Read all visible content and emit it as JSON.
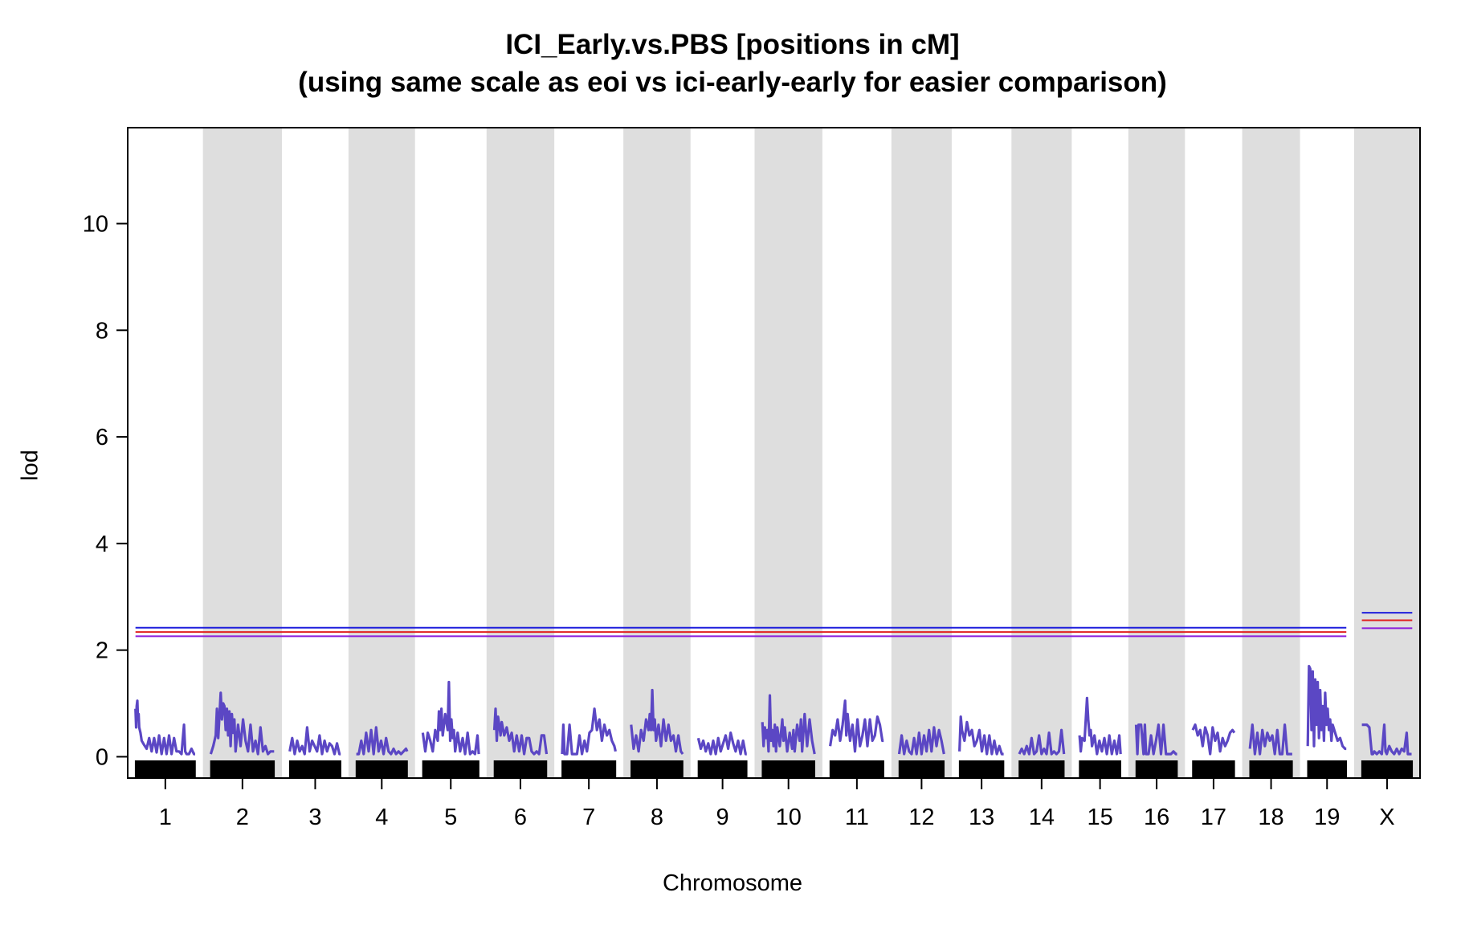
{
  "chart_data": {
    "type": "line",
    "title": "ICI_Early.vs.PBS [positions in cM]",
    "subtitle": "(using same scale as eoi vs ici-early-early for easier comparison)",
    "xlabel": "Chromosome",
    "ylabel": "lod",
    "ylim": [
      -0.4,
      11.8
    ],
    "yticks": [
      0,
      2,
      4,
      6,
      8,
      10
    ],
    "alternating_band_color": "#dedede",
    "line_color": "#5b47c4",
    "chromosomes": [
      {
        "name": "1",
        "length_cM": 96
      },
      {
        "name": "2",
        "length_cM": 102
      },
      {
        "name": "3",
        "length_cM": 82
      },
      {
        "name": "4",
        "length_cM": 82
      },
      {
        "name": "5",
        "length_cM": 90
      },
      {
        "name": "6",
        "length_cM": 84
      },
      {
        "name": "7",
        "length_cM": 86
      },
      {
        "name": "8",
        "length_cM": 83
      },
      {
        "name": "9",
        "length_cM": 78
      },
      {
        "name": "10",
        "length_cM": 84
      },
      {
        "name": "11",
        "length_cM": 86
      },
      {
        "name": "12",
        "length_cM": 72
      },
      {
        "name": "13",
        "length_cM": 71
      },
      {
        "name": "14",
        "length_cM": 72
      },
      {
        "name": "15",
        "length_cM": 66
      },
      {
        "name": "16",
        "length_cM": 66
      },
      {
        "name": "17",
        "length_cM": 67
      },
      {
        "name": "18",
        "length_cM": 68
      },
      {
        "name": "19",
        "length_cM": 62
      },
      {
        "name": "X",
        "length_cM": 81
      }
    ],
    "series": [
      {
        "chr": "1",
        "x": [
          0,
          1,
          2,
          3,
          4,
          5,
          6,
          8,
          10,
          14,
          18,
          22,
          26,
          30,
          34,
          38,
          42,
          46,
          50,
          54,
          58,
          62,
          66,
          70,
          74,
          78,
          80,
          82,
          86,
          90,
          94,
          96
        ],
        "y": [
          0.9,
          0.55,
          0.95,
          1.05,
          0.7,
          0.8,
          0.55,
          0.45,
          0.3,
          0.22,
          0.15,
          0.35,
          0.1,
          0.35,
          0.08,
          0.4,
          0.05,
          0.35,
          0.05,
          0.4,
          0.05,
          0.35,
          0.1,
          0.1,
          0.05,
          0.6,
          0.1,
          0.05,
          0.05,
          0.15,
          0.05,
          0.05
        ]
      },
      {
        "chr": "2",
        "x": [
          0,
          4,
          8,
          10,
          12,
          16,
          18,
          20,
          22,
          24,
          26,
          28,
          30,
          32,
          34,
          36,
          38,
          40,
          44,
          48,
          52,
          56,
          60,
          64,
          68,
          72,
          76,
          80,
          84,
          88,
          92,
          96,
          102
        ],
        "y": [
          0.05,
          0.2,
          0.4,
          0.9,
          0.35,
          1.2,
          0.7,
          1.0,
          0.95,
          0.5,
          0.9,
          0.4,
          0.85,
          0.2,
          0.8,
          0.45,
          0.7,
          0.1,
          0.6,
          0.2,
          0.7,
          0.3,
          0.1,
          0.6,
          0.1,
          0.3,
          0.05,
          0.55,
          0.1,
          0.2,
          0.05,
          0.1,
          0.1
        ]
      },
      {
        "chr": "3",
        "x": [
          0,
          4,
          8,
          12,
          16,
          20,
          24,
          28,
          32,
          36,
          40,
          44,
          48,
          52,
          56,
          60,
          64,
          68,
          72,
          76,
          80,
          82
        ],
        "y": [
          0.1,
          0.35,
          0.05,
          0.3,
          0.1,
          0.2,
          0.05,
          0.55,
          0.1,
          0.3,
          0.2,
          0.1,
          0.4,
          0.05,
          0.3,
          0.1,
          0.25,
          0.2,
          0.05,
          0.25,
          0.05,
          0.05
        ]
      },
      {
        "chr": "4",
        "x": [
          0,
          4,
          8,
          12,
          16,
          20,
          24,
          28,
          32,
          36,
          40,
          44,
          48,
          52,
          56,
          60,
          64,
          68,
          72,
          76,
          80,
          82
        ],
        "y": [
          0.05,
          0.05,
          0.3,
          0.05,
          0.45,
          0.1,
          0.5,
          0.05,
          0.55,
          0.1,
          0.3,
          0.05,
          0.35,
          0.1,
          0.05,
          0.15,
          0.05,
          0.1,
          0.05,
          0.1,
          0.15,
          0.1
        ]
      },
      {
        "chr": "5",
        "x": [
          0,
          4,
          8,
          12,
          16,
          20,
          24,
          26,
          28,
          30,
          32,
          36,
          40,
          42,
          44,
          46,
          48,
          50,
          52,
          56,
          60,
          64,
          68,
          72,
          76,
          80,
          84,
          88,
          90
        ],
        "y": [
          0.45,
          0.1,
          0.45,
          0.3,
          0.1,
          0.5,
          0.3,
          0.85,
          0.5,
          0.9,
          0.4,
          0.8,
          0.5,
          1.4,
          0.3,
          0.7,
          0.35,
          0.5,
          0.1,
          0.45,
          0.1,
          0.35,
          0.05,
          0.45,
          0.05,
          0.1,
          0.05,
          0.4,
          0.05
        ]
      },
      {
        "chr": "6",
        "x": [
          0,
          2,
          4,
          6,
          8,
          10,
          12,
          16,
          20,
          24,
          28,
          32,
          36,
          40,
          44,
          48,
          52,
          56,
          60,
          64,
          68,
          72,
          76,
          80,
          84
        ],
        "y": [
          0.5,
          0.9,
          0.3,
          0.75,
          0.6,
          0.4,
          0.65,
          0.4,
          0.55,
          0.3,
          0.45,
          0.1,
          0.4,
          0.1,
          0.4,
          0.05,
          0.35,
          0.35,
          0.1,
          0.05,
          0.1,
          0.05,
          0.4,
          0.4,
          0.05
        ]
      },
      {
        "chr": "7",
        "x": [
          0,
          2,
          4,
          8,
          12,
          16,
          20,
          24,
          28,
          32,
          36,
          40,
          44,
          48,
          52,
          56,
          60,
          64,
          68,
          72,
          76,
          80,
          84,
          86
        ],
        "y": [
          0.05,
          0.6,
          0.05,
          0.05,
          0.6,
          0.05,
          0.05,
          0.05,
          0.4,
          0.05,
          0.3,
          0.1,
          0.45,
          0.5,
          0.9,
          0.5,
          0.7,
          0.3,
          0.6,
          0.4,
          0.5,
          0.3,
          0.2,
          0.1
        ]
      },
      {
        "chr": "8",
        "x": [
          0,
          4,
          8,
          12,
          16,
          20,
          24,
          28,
          30,
          32,
          34,
          36,
          38,
          40,
          44,
          48,
          52,
          56,
          60,
          64,
          68,
          72,
          76,
          80,
          83
        ],
        "y": [
          0.6,
          0.15,
          0.4,
          0.1,
          0.5,
          0.3,
          0.7,
          0.5,
          0.8,
          0.5,
          1.25,
          0.5,
          0.7,
          0.3,
          0.6,
          0.2,
          0.7,
          0.3,
          0.6,
          0.3,
          0.4,
          0.1,
          0.4,
          0.1,
          0.05
        ]
      },
      {
        "chr": "9",
        "x": [
          0,
          4,
          8,
          12,
          16,
          20,
          24,
          28,
          32,
          36,
          40,
          44,
          48,
          52,
          56,
          60,
          64,
          68,
          72,
          76,
          78
        ],
        "y": [
          0.35,
          0.15,
          0.3,
          0.1,
          0.25,
          0.05,
          0.3,
          0.05,
          0.35,
          0.1,
          0.25,
          0.4,
          0.15,
          0.45,
          0.25,
          0.1,
          0.3,
          0.05,
          0.3,
          0.05,
          0.05
        ]
      },
      {
        "chr": "10",
        "x": [
          0,
          2,
          4,
          6,
          8,
          10,
          12,
          14,
          16,
          18,
          20,
          22,
          24,
          28,
          32,
          34,
          36,
          40,
          44,
          48,
          50,
          52,
          56,
          60,
          62,
          64,
          68,
          72,
          76,
          80,
          84
        ],
        "y": [
          0.65,
          0.2,
          0.55,
          0.35,
          0.5,
          0.1,
          1.15,
          0.3,
          0.5,
          0.2,
          0.6,
          0.1,
          0.55,
          0.2,
          0.7,
          0.3,
          0.55,
          0.1,
          0.45,
          0.15,
          0.5,
          0.1,
          0.6,
          0.3,
          0.7,
          0.1,
          0.8,
          0.2,
          0.7,
          0.3,
          0.05
        ]
      },
      {
        "chr": "11",
        "x": [
          0,
          4,
          8,
          12,
          16,
          20,
          24,
          26,
          28,
          32,
          36,
          40,
          44,
          48,
          52,
          56,
          60,
          64,
          68,
          72,
          76,
          80,
          84,
          86
        ],
        "y": [
          0.2,
          0.5,
          0.4,
          0.7,
          0.3,
          0.6,
          1.05,
          0.4,
          0.8,
          0.3,
          0.6,
          0.1,
          0.7,
          0.2,
          0.4,
          0.7,
          0.2,
          0.7,
          0.3,
          0.4,
          0.75,
          0.6,
          0.3,
          0.3
        ]
      },
      {
        "chr": "12",
        "x": [
          0,
          4,
          8,
          12,
          16,
          20,
          24,
          28,
          32,
          36,
          40,
          44,
          48,
          52,
          56,
          60,
          64,
          68,
          72
        ],
        "y": [
          0.05,
          0.4,
          0.05,
          0.3,
          0.1,
          0.05,
          0.35,
          0.05,
          0.45,
          0.05,
          0.4,
          0.1,
          0.5,
          0.1,
          0.55,
          0.2,
          0.5,
          0.3,
          0.05
        ]
      },
      {
        "chr": "13",
        "x": [
          0,
          2,
          4,
          8,
          12,
          16,
          20,
          24,
          28,
          32,
          36,
          40,
          44,
          48,
          52,
          56,
          60,
          64,
          68,
          71
        ],
        "y": [
          0.1,
          0.75,
          0.5,
          0.3,
          0.65,
          0.4,
          0.5,
          0.2,
          0.3,
          0.5,
          0.1,
          0.4,
          0.05,
          0.4,
          0.05,
          0.3,
          0.05,
          0.2,
          0.05,
          0.05
        ]
      },
      {
        "chr": "14",
        "x": [
          0,
          4,
          8,
          12,
          16,
          20,
          24,
          28,
          32,
          36,
          40,
          44,
          48,
          52,
          56,
          60,
          64,
          68,
          72
        ],
        "y": [
          0.05,
          0.15,
          0.05,
          0.2,
          0.05,
          0.35,
          0.05,
          0.1,
          0.4,
          0.05,
          0.15,
          0.05,
          0.45,
          0.05,
          0.1,
          0.05,
          0.1,
          0.5,
          0.05
        ]
      },
      {
        "chr": "15",
        "x": [
          0,
          2,
          4,
          8,
          12,
          14,
          16,
          18,
          20,
          24,
          28,
          32,
          36,
          40,
          44,
          48,
          52,
          56,
          60,
          64,
          66
        ],
        "y": [
          0.4,
          0.1,
          0.35,
          0.3,
          1.1,
          0.7,
          0.4,
          0.5,
          0.2,
          0.4,
          0.05,
          0.3,
          0.1,
          0.35,
          0.05,
          0.4,
          0.05,
          0.3,
          0.05,
          0.4,
          0.05
        ]
      },
      {
        "chr": "16",
        "x": [
          0,
          2,
          4,
          8,
          12,
          14,
          16,
          20,
          24,
          28,
          32,
          36,
          40,
          44,
          48,
          52,
          56,
          60,
          64,
          66
        ],
        "y": [
          0.6,
          0.05,
          0.6,
          0.6,
          0.05,
          0.6,
          0.05,
          0.05,
          0.4,
          0.05,
          0.3,
          0.6,
          0.05,
          0.6,
          0.05,
          0.05,
          0.05,
          0.1,
          0.05,
          0.05
        ]
      },
      {
        "chr": "17",
        "x": [
          0,
          4,
          8,
          12,
          16,
          20,
          24,
          28,
          32,
          36,
          40,
          44,
          48,
          52,
          56,
          60,
          64,
          67
        ],
        "y": [
          0.5,
          0.6,
          0.4,
          0.5,
          0.2,
          0.55,
          0.4,
          0.05,
          0.55,
          0.3,
          0.45,
          0.1,
          0.35,
          0.2,
          0.3,
          0.45,
          0.5,
          0.45
        ]
      },
      {
        "chr": "18",
        "x": [
          0,
          4,
          8,
          12,
          16,
          20,
          24,
          28,
          32,
          36,
          40,
          44,
          48,
          52,
          56,
          60,
          64,
          68
        ],
        "y": [
          0.15,
          0.6,
          0.05,
          0.45,
          0.05,
          0.5,
          0.2,
          0.45,
          0.3,
          0.4,
          0.05,
          0.5,
          0.05,
          0.05,
          0.6,
          0.05,
          0.05,
          0.05
        ]
      },
      {
        "chr": "19",
        "x": [
          0,
          2,
          4,
          6,
          8,
          10,
          12,
          14,
          16,
          18,
          20,
          22,
          24,
          26,
          28,
          30,
          32,
          34,
          36,
          38,
          40,
          44,
          48,
          52,
          56,
          60,
          62
        ],
        "y": [
          0.2,
          1.7,
          1.65,
          0.5,
          1.6,
          0.2,
          1.45,
          0.6,
          1.4,
          0.35,
          1.25,
          0.5,
          0.95,
          0.3,
          1.2,
          0.6,
          0.9,
          0.5,
          0.7,
          0.3,
          0.6,
          0.45,
          0.3,
          0.35,
          0.2,
          0.15,
          0.15
        ]
      },
      {
        "chr": "X",
        "x": [
          0,
          4,
          8,
          12,
          14,
          16,
          18,
          20,
          24,
          28,
          32,
          36,
          38,
          40,
          44,
          48,
          52,
          56,
          60,
          64,
          68,
          72,
          74,
          76,
          80
        ],
        "y": [
          0.6,
          0.6,
          0.6,
          0.55,
          0.3,
          0.05,
          0.05,
          0.1,
          0.05,
          0.1,
          0.05,
          0.6,
          0.1,
          0.05,
          0.2,
          0.1,
          0.05,
          0.15,
          0.05,
          0.15,
          0.1,
          0.45,
          0.05,
          0.05,
          0.05
        ]
      }
    ],
    "thresholds": {
      "autosome": [
        {
          "value": 2.42,
          "color": "#1e1edc"
        },
        {
          "value": 2.34,
          "color": "#e02020"
        },
        {
          "value": 2.26,
          "color": "#8a1edc"
        }
      ],
      "x": [
        {
          "value": 2.7,
          "color": "#1e1edc"
        },
        {
          "value": 2.56,
          "color": "#e02020"
        },
        {
          "value": 2.41,
          "color": "#8a1edc"
        }
      ]
    }
  }
}
